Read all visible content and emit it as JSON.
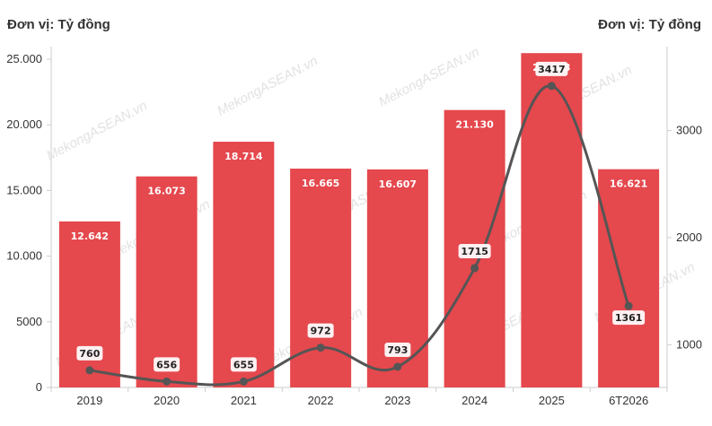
{
  "unit_left": "Đơn vị: Tỷ đồng",
  "unit_right": "Đơn vị: Tỷ đồng",
  "watermark": "MekongASEAN.vn",
  "colors": {
    "bar": "#e5484d",
    "line": "#555555",
    "axis": "#cccccc"
  },
  "chart_data": {
    "type": "bar",
    "categories": [
      "2019",
      "2020",
      "2021",
      "2022",
      "2023",
      "2024",
      "2025",
      "6T2026"
    ],
    "series": [
      {
        "type": "bar",
        "axis": "left",
        "values": [
          12642,
          16073,
          18714,
          16665,
          16607,
          21130,
          25463,
          16621
        ],
        "labels": [
          "12.642",
          "16.073",
          "18.714",
          "16.665",
          "16.607",
          "21.130",
          "25.463",
          "16.621"
        ]
      },
      {
        "type": "line",
        "axis": "right",
        "values": [
          760,
          656,
          655,
          972,
          793,
          1715,
          3417,
          1361
        ],
        "labels": [
          "760",
          "656",
          "655",
          "972",
          "793",
          "1715",
          "3417",
          "1361"
        ]
      }
    ],
    "y_left": {
      "ylim": [
        0,
        25000
      ],
      "ticks": [
        0,
        5000,
        10000,
        15000,
        20000,
        25000
      ],
      "tick_labels": [
        "0",
        "5000",
        "10.000",
        "15.000",
        "20.000",
        "25.000"
      ]
    },
    "y_right": {
      "ylim": [
        600,
        3600
      ],
      "ticks": [
        1000,
        2000,
        3000
      ],
      "tick_labels": [
        "1000",
        "2000",
        "3000"
      ]
    },
    "grid": false,
    "legend": "none"
  }
}
